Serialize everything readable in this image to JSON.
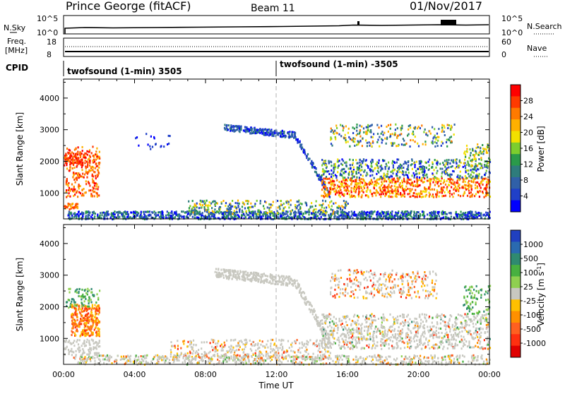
{
  "header": {
    "station": "Prince George (fitACF)",
    "beam": "Beam 11",
    "date": "01/Nov/2017"
  },
  "nsky_panel": {
    "left_label": "N.Sky",
    "left_ticks": [
      "10^5",
      "10^0"
    ],
    "right_label": "N.Search",
    "right_ticks": [
      "10^5",
      "10^0"
    ]
  },
  "freq_panel": {
    "left_label_1": "Freq.",
    "left_label_2": "[MHz]",
    "left_ticks": [
      "18",
      "8"
    ],
    "right_label": "Nave",
    "right_ticks": [
      "60",
      "0"
    ]
  },
  "cpid_panel": {
    "label": "CPID",
    "segment_1": "twofsound (1-min) 3505",
    "segment_2": "twofsound (1-min) -3505"
  },
  "chart_data": [
    {
      "type": "heatmap",
      "name": "Power panel",
      "ylabel": "Slant Range [km]",
      "xlabel": "",
      "x_range": [
        "00:00",
        "00:00"
      ],
      "ylim": [
        180,
        4600
      ],
      "y_ticks": [
        1000,
        2000,
        3000,
        4000
      ],
      "x_ticks": [
        "00:00",
        "04:00",
        "08:00",
        "12:00",
        "16:00",
        "20:00",
        "00:00"
      ],
      "colorbar": {
        "label": "Power [dB]",
        "ticks": [
          "28",
          "24",
          "20",
          "16",
          "12",
          "8",
          "4"
        ],
        "colors": [
          "#ff0000",
          "#ff3a00",
          "#ff7a00",
          "#ffb000",
          "#f2e000",
          "#7ccd2e",
          "#2a9a4a",
          "#2e7c7c",
          "#3060a8",
          "#2040c8",
          "#0000ff"
        ]
      }
    },
    {
      "type": "heatmap",
      "name": "Velocity panel",
      "ylabel": "Slant Range [km]",
      "xlabel": "Time UT",
      "x_range": [
        "00:00",
        "00:00"
      ],
      "ylim": [
        180,
        4600
      ],
      "y_ticks": [
        1000,
        2000,
        3000,
        4000
      ],
      "x_ticks": [
        "00:00",
        "04:00",
        "08:00",
        "12:00",
        "16:00",
        "20:00",
        "00:00"
      ],
      "colorbar": {
        "label": "Velocity [m s^-1]",
        "ticks": [
          "1000",
          "500",
          "100",
          "25",
          "-25",
          "-100",
          "-500",
          "-1000"
        ],
        "colors": [
          "#2040c0",
          "#2a6ab0",
          "#2f8a70",
          "#48b040",
          "#8fd050",
          "#c8c8c0",
          "#ffc000",
          "#ff9000",
          "#ff6020",
          "#ff3010",
          "#e00000"
        ]
      }
    }
  ]
}
